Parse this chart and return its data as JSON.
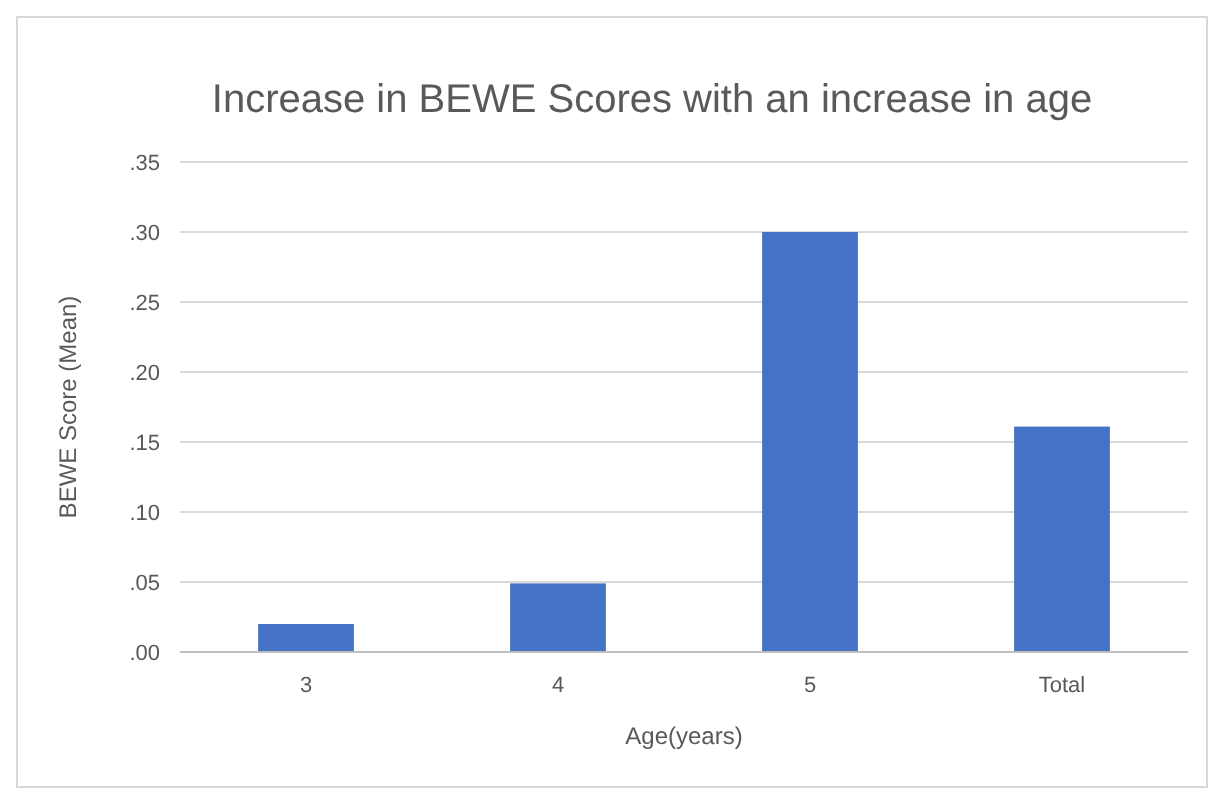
{
  "chart_data": {
    "type": "bar",
    "title": "Increase in BEWE Scores with an increase in age",
    "xlabel": "Age(years)",
    "ylabel": "BEWE Score (Mean)",
    "categories": [
      "3",
      "4",
      "5",
      "Total"
    ],
    "values": [
      0.02,
      0.049,
      0.3,
      0.161
    ],
    "color": "#4472c4",
    "ylim": [
      0,
      0.35
    ],
    "yticks": [
      {
        "value": 0,
        "label": ".00"
      },
      {
        "value": 0.05,
        "label": ".05"
      },
      {
        "value": 0.1,
        "label": ".10"
      },
      {
        "value": 0.15,
        "label": ".15"
      },
      {
        "value": 0.2,
        "label": ".20"
      },
      {
        "value": 0.25,
        "label": ".25"
      },
      {
        "value": 0.3,
        "label": ".30"
      },
      {
        "value": 0.35,
        "label": ".35"
      }
    ],
    "grid": "y"
  }
}
